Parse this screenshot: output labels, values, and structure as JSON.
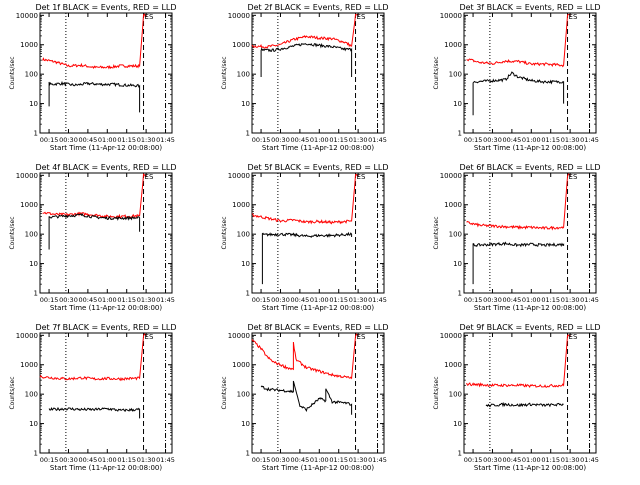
{
  "page": {
    "background": "#ffffff",
    "foreground": "#000000",
    "events_color": "#000000",
    "lld_color": "#ff0000"
  },
  "chart_data": [
    {
      "type": "line",
      "title": "Det 1f BLACK = Events, RED = LLD",
      "ylabel": "Counts/sec",
      "xlabel": "Start Time (11-Apr-12 00:08:00)",
      "x_tick_labels": [
        "00:15",
        "00:30",
        "00:45",
        "01:00",
        "01:15",
        "01:30",
        "01:45"
      ],
      "y_tick_labels": [
        "1",
        "10",
        "100",
        "1000",
        "10000"
      ],
      "ylim": [
        1,
        12000
      ],
      "yscale": "log",
      "xlim": [
        "00:08",
        "01:50"
      ],
      "vlines": [
        {
          "x": "00:28",
          "style": "dotted"
        },
        {
          "x": "01:28",
          "style": "dashed"
        },
        {
          "x": "01:45",
          "style": "dash-dot"
        }
      ],
      "marker": {
        "label": "ES",
        "x": "01:28"
      },
      "series": [
        {
          "name": "LLD",
          "color": "#ff0000",
          "x": [
            "00:10",
            "00:20",
            "00:30",
            "00:40",
            "00:50",
            "01:00",
            "01:10",
            "01:25",
            "01:28",
            "01:30"
          ],
          "y": [
            320,
            260,
            190,
            200,
            170,
            170,
            190,
            190,
            10000,
            10000
          ]
        },
        {
          "name": "Events",
          "color": "#000000",
          "x": [
            "00:15",
            "00:15",
            "00:16",
            "00:25",
            "00:35",
            "00:45",
            "00:55",
            "01:05",
            "01:15",
            "01:25",
            "01:25"
          ],
          "y": [
            8,
            50,
            45,
            48,
            42,
            48,
            45,
            45,
            42,
            40,
            5
          ]
        }
      ]
    },
    {
      "type": "line",
      "title": "Det 2f BLACK = Events, RED = LLD",
      "ylabel": "Counts/sec",
      "xlabel": "Start Time (11-Apr-12 00:08:00)",
      "x_tick_labels": [
        "00:15",
        "00:30",
        "00:45",
        "01:00",
        "01:15",
        "01:30",
        "01:45"
      ],
      "y_tick_labels": [
        "1",
        "10",
        "100",
        "1000",
        "10000"
      ],
      "ylim": [
        1,
        12000
      ],
      "yscale": "log",
      "xlim": [
        "00:08",
        "01:50"
      ],
      "vlines": [
        {
          "x": "00:28",
          "style": "dotted"
        },
        {
          "x": "01:28",
          "style": "dashed"
        },
        {
          "x": "01:45",
          "style": "dash-dot"
        }
      ],
      "marker": {
        "label": "ES",
        "x": "01:28"
      },
      "series": [
        {
          "name": "LLD",
          "color": "#ff0000",
          "x": [
            "00:08",
            "00:20",
            "00:30",
            "00:40",
            "00:50",
            "01:00",
            "01:10",
            "01:20",
            "01:25",
            "01:28",
            "01:30"
          ],
          "y": [
            900,
            850,
            1000,
            1500,
            1900,
            1700,
            1600,
            1200,
            900,
            10000,
            10000
          ]
        },
        {
          "name": "Events",
          "color": "#000000",
          "x": [
            "00:15",
            "00:15",
            "00:16",
            "00:25",
            "00:35",
            "00:45",
            "00:50",
            "01:00",
            "01:10",
            "01:20",
            "01:25",
            "01:25"
          ],
          "y": [
            80,
            700,
            650,
            650,
            800,
            1000,
            1100,
            950,
            850,
            700,
            700,
            80
          ]
        }
      ]
    },
    {
      "type": "line",
      "title": "Det 3f BLACK = Events, RED = LLD",
      "ylabel": "Counts/sec",
      "xlabel": "Start Time (11-Apr-12 00:08:00)",
      "x_tick_labels": [
        "00:15",
        "00:30",
        "00:45",
        "01:00",
        "01:15",
        "01:30",
        "01:45"
      ],
      "y_tick_labels": [
        "1",
        "10",
        "100",
        "1000",
        "10000"
      ],
      "ylim": [
        1,
        12000
      ],
      "yscale": "log",
      "xlim": [
        "00:08",
        "01:50"
      ],
      "vlines": [
        {
          "x": "00:28",
          "style": "dotted"
        },
        {
          "x": "01:28",
          "style": "dashed"
        },
        {
          "x": "01:45",
          "style": "dash-dot"
        }
      ],
      "marker": {
        "label": "ES",
        "x": "01:28"
      },
      "series": [
        {
          "name": "LLD",
          "color": "#ff0000",
          "x": [
            "00:10",
            "00:20",
            "00:30",
            "00:40",
            "00:50",
            "01:00",
            "01:10",
            "01:25",
            "01:28",
            "01:30"
          ],
          "y": [
            330,
            250,
            230,
            280,
            270,
            220,
            220,
            200,
            10000,
            10000
          ]
        },
        {
          "name": "Events",
          "color": "#000000",
          "x": [
            "00:15",
            "00:15",
            "00:16",
            "00:30",
            "00:40",
            "00:45",
            "00:50",
            "01:00",
            "01:10",
            "01:25",
            "01:25"
          ],
          "y": [
            4,
            55,
            55,
            60,
            65,
            110,
            80,
            60,
            55,
            55,
            10
          ]
        }
      ]
    },
    {
      "type": "line",
      "title": "Det 4f BLACK = Events, RED = LLD",
      "ylabel": "Counts/sec",
      "xlabel": "Start Time (11-Apr-12 00:08:00)",
      "x_tick_labels": [
        "00:15",
        "00:30",
        "00:45",
        "01:00",
        "01:15",
        "01:30",
        "01:45"
      ],
      "y_tick_labels": [
        "1",
        "10",
        "100",
        "1000",
        "10000"
      ],
      "ylim": [
        1,
        12000
      ],
      "yscale": "log",
      "xlim": [
        "00:08",
        "01:50"
      ],
      "vlines": [
        {
          "x": "00:28",
          "style": "dotted"
        },
        {
          "x": "01:28",
          "style": "dashed"
        },
        {
          "x": "01:45",
          "style": "dash-dot"
        }
      ],
      "marker": {
        "label": "ES",
        "x": "01:28"
      },
      "series": [
        {
          "name": "LLD",
          "color": "#ff0000",
          "x": [
            "00:10",
            "00:20",
            "00:30",
            "00:40",
            "00:50",
            "01:00",
            "01:10",
            "01:25",
            "01:28",
            "01:30"
          ],
          "y": [
            550,
            470,
            460,
            500,
            450,
            400,
            400,
            420,
            10000,
            10000
          ]
        },
        {
          "name": "Events",
          "color": "#000000",
          "x": [
            "00:15",
            "00:15",
            "00:16",
            "00:30",
            "00:40",
            "00:50",
            "01:00",
            "01:10",
            "01:25",
            "01:25"
          ],
          "y": [
            30,
            400,
            380,
            420,
            450,
            380,
            350,
            350,
            360,
            120
          ]
        }
      ]
    },
    {
      "type": "line",
      "title": "Det 5f BLACK = Events, RED = LLD",
      "ylabel": "Counts/sec",
      "xlabel": "Start Time (11-Apr-12 00:08:00)",
      "x_tick_labels": [
        "00:15",
        "00:30",
        "00:45",
        "01:00",
        "01:15",
        "01:30",
        "01:45"
      ],
      "y_tick_labels": [
        "1",
        "10",
        "100",
        "1000",
        "10000"
      ],
      "ylim": [
        1,
        12000
      ],
      "yscale": "log",
      "xlim": [
        "00:08",
        "01:50"
      ],
      "vlines": [
        {
          "x": "00:28",
          "style": "dotted"
        },
        {
          "x": "01:28",
          "style": "dashed"
        },
        {
          "x": "01:45",
          "style": "dash-dot"
        }
      ],
      "marker": {
        "label": "ES",
        "x": "01:28"
      },
      "series": [
        {
          "name": "LLD",
          "color": "#ff0000",
          "x": [
            "00:08",
            "00:20",
            "00:30",
            "00:40",
            "00:50",
            "01:00",
            "01:10",
            "01:25",
            "01:28",
            "01:30"
          ],
          "y": [
            450,
            350,
            280,
            300,
            260,
            270,
            250,
            280,
            10000,
            10000
          ]
        },
        {
          "name": "Events",
          "color": "#000000",
          "x": [
            "00:16",
            "00:16",
            "00:17",
            "00:30",
            "00:40",
            "00:50",
            "01:00",
            "01:10",
            "01:25",
            "01:25"
          ],
          "y": [
            2,
            100,
            95,
            100,
            95,
            85,
            90,
            90,
            100,
            80
          ]
        }
      ]
    },
    {
      "type": "line",
      "title": "Det 6f BLACK = Events, RED = LLD",
      "ylabel": "Counts/sec",
      "xlabel": "Start Time (11-Apr-12 00:08:00)",
      "x_tick_labels": [
        "00:15",
        "00:30",
        "00:45",
        "01:00",
        "01:15",
        "01:30",
        "01:45"
      ],
      "y_tick_labels": [
        "1",
        "10",
        "100",
        "1000",
        "10000"
      ],
      "ylim": [
        1,
        12000
      ],
      "yscale": "log",
      "xlim": [
        "00:08",
        "01:50"
      ],
      "vlines": [
        {
          "x": "00:28",
          "style": "dotted"
        },
        {
          "x": "01:28",
          "style": "dashed"
        },
        {
          "x": "01:45",
          "style": "dash-dot"
        }
      ],
      "marker": {
        "label": "ES",
        "x": "01:28"
      },
      "series": [
        {
          "name": "LLD",
          "color": "#ff0000",
          "x": [
            "00:10",
            "00:20",
            "00:30",
            "00:40",
            "00:50",
            "01:00",
            "01:10",
            "01:25",
            "01:28",
            "01:30"
          ],
          "y": [
            250,
            200,
            190,
            180,
            170,
            170,
            160,
            170,
            10000,
            10000
          ]
        },
        {
          "name": "Events",
          "color": "#000000",
          "x": [
            "00:15",
            "00:15",
            "00:16",
            "00:30",
            "00:40",
            "00:50",
            "01:00",
            "01:10",
            "01:25",
            "01:25"
          ],
          "y": [
            2,
            45,
            42,
            45,
            48,
            42,
            45,
            42,
            45,
            40
          ]
        }
      ]
    },
    {
      "type": "line",
      "title": "Det 7f BLACK = Events, RED = LLD",
      "ylabel": "Counts/sec",
      "xlabel": "Start Time (11-Apr-12 00:08:00)",
      "x_tick_labels": [
        "00:15",
        "00:30",
        "00:45",
        "01:00",
        "01:15",
        "01:30",
        "01:45"
      ],
      "y_tick_labels": [
        "1",
        "10",
        "100",
        "1000",
        "10000"
      ],
      "ylim": [
        1,
        12000
      ],
      "yscale": "log",
      "xlim": [
        "00:08",
        "01:50"
      ],
      "vlines": [
        {
          "x": "00:28",
          "style": "dotted"
        },
        {
          "x": "01:28",
          "style": "dashed"
        },
        {
          "x": "01:45",
          "style": "dash-dot"
        }
      ],
      "marker": {
        "label": "ES",
        "x": "01:28"
      },
      "series": [
        {
          "name": "LLD",
          "color": "#ff0000",
          "x": [
            "00:08",
            "00:20",
            "00:30",
            "00:40",
            "00:50",
            "01:00",
            "01:10",
            "01:25",
            "01:28",
            "01:30"
          ],
          "y": [
            400,
            350,
            330,
            360,
            330,
            340,
            330,
            350,
            10000,
            10000
          ]
        },
        {
          "name": "Events",
          "color": "#000000",
          "x": [
            "00:15",
            "00:30",
            "00:40",
            "00:50",
            "01:00",
            "01:10",
            "01:25",
            "01:25"
          ],
          "y": [
            30,
            32,
            30,
            30,
            32,
            28,
            30,
            15
          ]
        }
      ]
    },
    {
      "type": "line",
      "title": "Det 8f BLACK = Events, RED = LLD",
      "ylabel": "Counts/sec",
      "xlabel": "Start Time (11-Apr-12 00:08:00)",
      "x_tick_labels": [
        "00:15",
        "00:30",
        "00:45",
        "01:00",
        "01:15",
        "01:30",
        "01:45"
      ],
      "y_tick_labels": [
        "1",
        "10",
        "100",
        "1000",
        "10000"
      ],
      "ylim": [
        1,
        12000
      ],
      "yscale": "log",
      "xlim": [
        "00:08",
        "01:50"
      ],
      "vlines": [
        {
          "x": "00:28",
          "style": "dotted"
        },
        {
          "x": "01:28",
          "style": "dashed"
        },
        {
          "x": "01:45",
          "style": "dash-dot"
        }
      ],
      "marker": {
        "label": "ES",
        "x": "01:28"
      },
      "series": [
        {
          "name": "LLD",
          "color": "#ff0000",
          "x": [
            "00:08",
            "00:15",
            "00:20",
            "00:25",
            "00:30",
            "00:35",
            "00:40",
            "00:40",
            "00:42",
            "00:50",
            "01:00",
            "01:10",
            "01:25",
            "01:28",
            "01:30"
          ],
          "y": [
            7000,
            3500,
            1800,
            1200,
            1000,
            800,
            700,
            5500,
            1500,
            800,
            600,
            450,
            350,
            10000,
            10000
          ]
        },
        {
          "name": "Events",
          "color": "#000000",
          "x": [
            "00:15",
            "00:20",
            "00:25",
            "00:35",
            "00:40",
            "00:40",
            "00:45",
            "00:50",
            "01:00",
            "01:05",
            "01:05",
            "01:10",
            "01:20",
            "01:25",
            "01:25"
          ],
          "y": [
            180,
            150,
            140,
            130,
            120,
            280,
            40,
            30,
            70,
            60,
            150,
            55,
            50,
            45,
            20
          ]
        }
      ]
    },
    {
      "type": "line",
      "title": "Det 9f BLACK = Events, RED = LLD",
      "ylabel": "Counts/sec",
      "xlabel": "Start Time (11-Apr-12 00:08:00)",
      "x_tick_labels": [
        "00:15",
        "00:30",
        "00:45",
        "01:00",
        "01:15",
        "01:30",
        "01:45"
      ],
      "y_tick_labels": [
        "1",
        "10",
        "100",
        "1000",
        "10000"
      ],
      "ylim": [
        1,
        12000
      ],
      "yscale": "log",
      "xlim": [
        "00:08",
        "01:50"
      ],
      "vlines": [
        {
          "x": "00:28",
          "style": "dotted"
        },
        {
          "x": "01:28",
          "style": "dashed"
        },
        {
          "x": "01:45",
          "style": "dash-dot"
        }
      ],
      "marker": {
        "label": "ES",
        "x": "01:28"
      },
      "series": [
        {
          "name": "LLD",
          "color": "#ff0000",
          "x": [
            "00:10",
            "00:20",
            "00:30",
            "00:40",
            "00:50",
            "01:00",
            "01:10",
            "01:25",
            "01:28",
            "01:30"
          ],
          "y": [
            220,
            210,
            200,
            200,
            200,
            190,
            190,
            200,
            10000,
            10000
          ]
        },
        {
          "name": "Events",
          "color": "#000000",
          "x": [
            "00:25",
            "00:30",
            "00:40",
            "00:50",
            "01:00",
            "01:10",
            "01:25"
          ],
          "y": [
            40,
            42,
            45,
            42,
            45,
            42,
            45
          ]
        }
      ]
    }
  ]
}
